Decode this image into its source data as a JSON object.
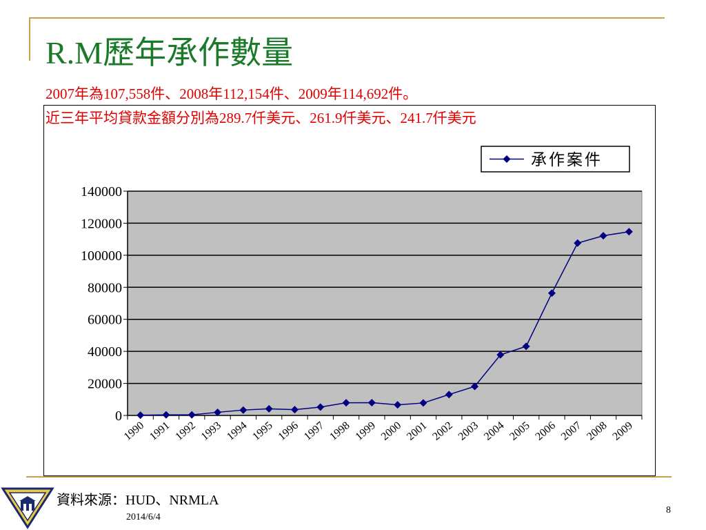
{
  "slide": {
    "title": "R.M歷年承作數量",
    "subtitle_line1": "2007年為107,558件、2008年112,154件、2009年114,692件。",
    "subtitle_line2": "近三年平均貸款金額分別為289.7仟美元、261.9仟美元、241.7仟美元",
    "source": "資料來源：HUD、NRMLA",
    "date": "2014/6/4",
    "page_number": "8"
  },
  "colors": {
    "title": "#1a7a2a",
    "subtitle": "#e00000",
    "accent_line": "#c8a24a",
    "plot_bg": "#c0c0c0",
    "series": "#000080"
  },
  "chart_data": {
    "type": "line",
    "title": "",
    "xlabel": "",
    "ylabel": "",
    "ylim": [
      0,
      140000
    ],
    "yticks": [
      0,
      20000,
      40000,
      60000,
      80000,
      100000,
      120000,
      140000
    ],
    "grid": true,
    "legend_position": "top-right",
    "categories": [
      "1990",
      "1991",
      "1992",
      "1993",
      "1994",
      "1995",
      "1996",
      "1997",
      "1998",
      "1999",
      "2000",
      "2001",
      "2002",
      "2003",
      "2004",
      "2005",
      "2006",
      "2007",
      "2008",
      "2009"
    ],
    "series": [
      {
        "name": "承作案件",
        "marker": "diamond",
        "values": [
          157,
          389,
          389,
          1964,
          3365,
          4165,
          3596,
          5208,
          7895,
          7982,
          6640,
          7781,
          13049,
          18097,
          37829,
          43131,
          76351,
          107558,
          112154,
          114692
        ]
      }
    ]
  }
}
